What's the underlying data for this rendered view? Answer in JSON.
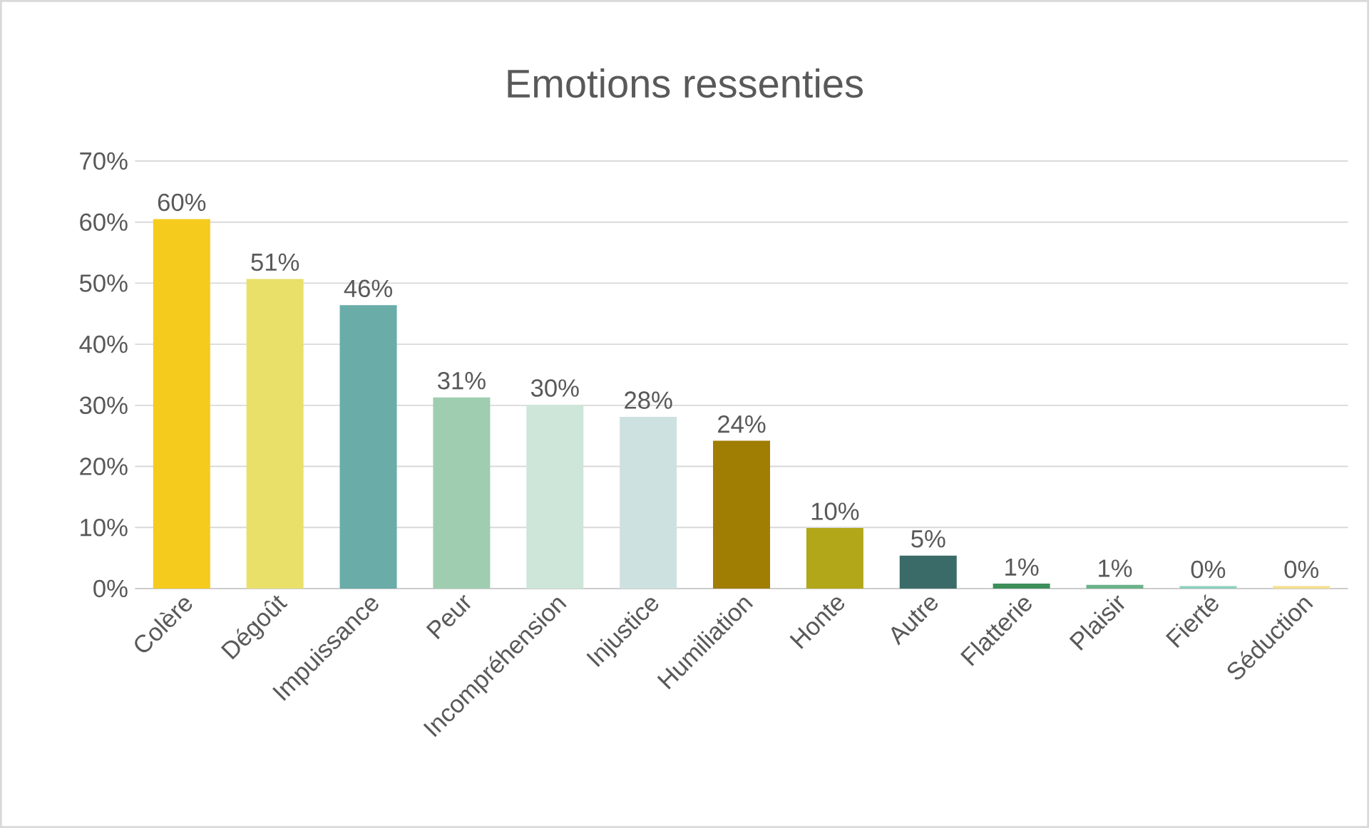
{
  "chart_data": {
    "type": "bar",
    "title": "Emotions ressenties",
    "categories": [
      "Colère",
      "Dégoût",
      "Impuissance",
      "Peur",
      "Incompréhension",
      "Injustice",
      "Humiliation",
      "Honte",
      "Autre",
      "Flatterie",
      "Plaisir",
      "Fierté",
      "Séduction"
    ],
    "values": [
      60.5,
      50.7,
      46.4,
      31.3,
      30.1,
      28.1,
      24.2,
      9.9,
      5.4,
      0.8,
      0.6,
      0.4,
      0.4
    ],
    "value_labels": [
      "60%",
      "51%",
      "46%",
      "31%",
      "30%",
      "28%",
      "24%",
      "10%",
      "5%",
      "1%",
      "1%",
      "0%",
      "0%"
    ],
    "colors": [
      "#f5cb1e",
      "#e9e06a",
      "#6aaca8",
      "#9fcdb0",
      "#cde6d9",
      "#cde1e0",
      "#a07e04",
      "#b1a718",
      "#3b6b68",
      "#3d8f5a",
      "#6bb28a",
      "#8fd0c0",
      "#f5e08a"
    ],
    "ylim": [
      0,
      70
    ],
    "yticks": [
      {
        "value": 0,
        "label": "0%"
      },
      {
        "value": 10,
        "label": "10%"
      },
      {
        "value": 20,
        "label": "20%"
      },
      {
        "value": 30,
        "label": "30%"
      },
      {
        "value": 40,
        "label": "40%"
      },
      {
        "value": 50,
        "label": "50%"
      },
      {
        "value": 60,
        "label": "60%"
      },
      {
        "value": 70,
        "label": "70%"
      }
    ],
    "grid": "y"
  }
}
